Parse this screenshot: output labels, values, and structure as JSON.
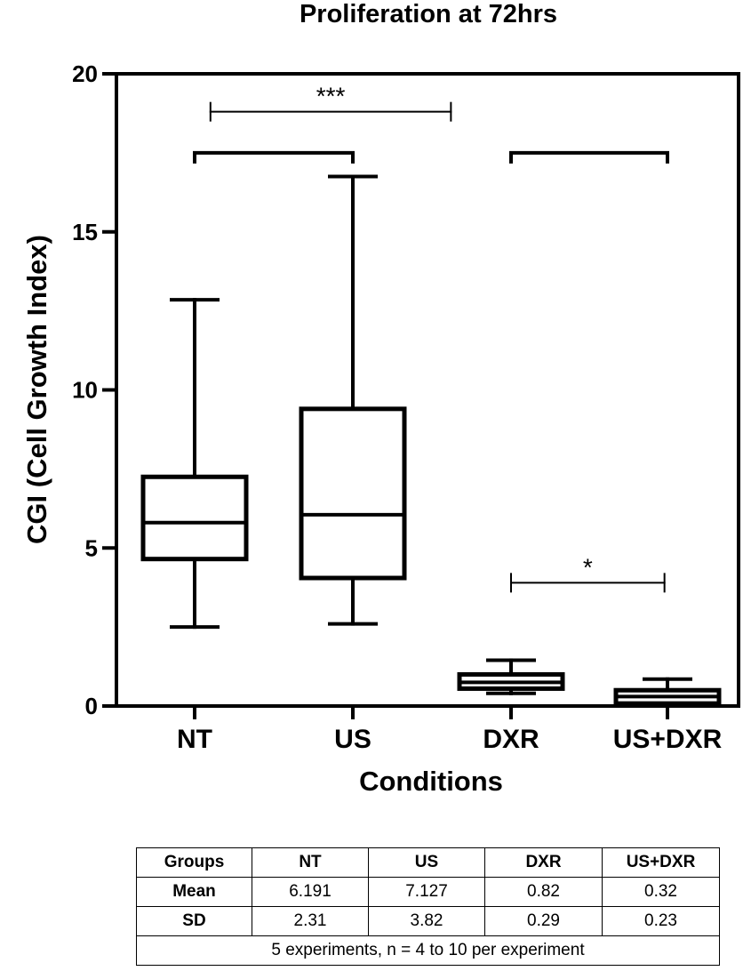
{
  "chart_data": {
    "type": "box",
    "title": "Proliferation at 72hrs",
    "xlabel": "Conditions",
    "ylabel": "CGI (Cell  Growth  Index)",
    "ylim": [
      0,
      20
    ],
    "yticks": [
      0,
      5,
      10,
      15,
      20
    ],
    "grid": false,
    "categories": [
      "NT",
      "US",
      "DXR",
      "US+DXR"
    ],
    "boxes": [
      {
        "category": "NT",
        "min": 2.5,
        "q1": 4.65,
        "median": 5.8,
        "q3": 7.25,
        "max": 12.85
      },
      {
        "category": "US",
        "min": 2.6,
        "q1": 4.05,
        "median": 6.05,
        "q3": 9.4,
        "max": 16.75
      },
      {
        "category": "DXR",
        "min": 0.4,
        "q1": 0.55,
        "median": 0.75,
        "q3": 1.0,
        "max": 1.45
      },
      {
        "category": "US+DXR",
        "min": 0.0,
        "q1": 0.08,
        "median": 0.3,
        "q3": 0.5,
        "max": 0.85
      }
    ],
    "brackets": [
      {
        "type": "plain",
        "from": "NT",
        "to": "US",
        "y": 17.5
      },
      {
        "type": "plain",
        "from": "DXR",
        "to": "US+DXR",
        "y": 17.5
      }
    ],
    "significance": [
      {
        "label": "***",
        "from_x": 1.1,
        "to_x": 2.62,
        "y": 18.8
      },
      {
        "label": "*",
        "from_x": 3.0,
        "to_x": 3.97,
        "y": 3.9
      }
    ]
  },
  "table": {
    "header": [
      "Groups",
      "NT",
      "US",
      "DXR",
      "US+DXR"
    ],
    "rows": [
      {
        "label": "Mean",
        "values": [
          "6.191",
          "7.127",
          "0.82",
          "0.32"
        ]
      },
      {
        "label": "SD",
        "values": [
          "2.31",
          "3.82",
          "0.29",
          "0.23"
        ]
      }
    ],
    "footnote": "5 experiments, n = 4 to 10 per experiment"
  }
}
